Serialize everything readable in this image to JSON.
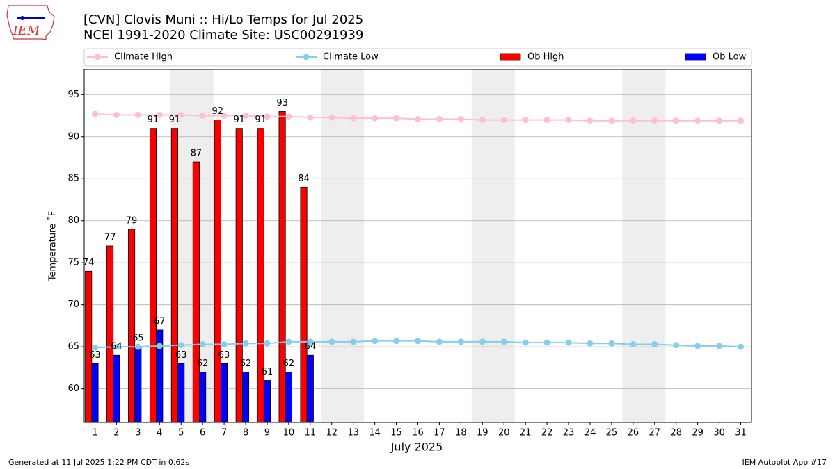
{
  "logo_text": "IEM",
  "chart_data": {
    "type": "bar_line",
    "title": "[CVN] Clovis Muni :: Hi/Lo Temps for Jul 2025",
    "subtitle": "NCEI 1991-2020 Climate Site: USC00291939",
    "x_label": "July 2025",
    "y_label": "Temperature ˚F",
    "x": [
      1,
      2,
      3,
      4,
      5,
      6,
      7,
      8,
      9,
      10,
      11,
      12,
      13,
      14,
      15,
      16,
      17,
      18,
      19,
      20,
      21,
      22,
      23,
      24,
      25,
      26,
      27,
      28,
      29,
      30,
      31
    ],
    "xlim": [
      0.5,
      31.5
    ],
    "xticks": [
      1,
      2,
      3,
      4,
      5,
      6,
      7,
      8,
      9,
      10,
      11,
      12,
      13,
      14,
      15,
      16,
      17,
      18,
      19,
      20,
      21,
      22,
      23,
      24,
      25,
      26,
      27,
      28,
      29,
      30,
      31
    ],
    "ylim": [
      56,
      98
    ],
    "yticks": [
      60,
      65,
      70,
      75,
      80,
      85,
      90,
      95
    ],
    "grid": true,
    "shaded_ranges": [
      [
        4.5,
        6.5
      ],
      [
        11.5,
        13.5
      ],
      [
        18.5,
        20.5
      ],
      [
        25.5,
        27.5
      ]
    ],
    "shade_color": "#eeeeee",
    "legend": "upper center outside",
    "series": [
      {
        "name": "Climate High",
        "kind": "line",
        "color": "#ffc0cb",
        "values": [
          92.7,
          92.6,
          92.6,
          92.6,
          92.6,
          92.5,
          92.5,
          92.5,
          92.4,
          92.4,
          92.3,
          92.3,
          92.2,
          92.2,
          92.2,
          92.1,
          92.1,
          92.1,
          92.0,
          92.0,
          92.0,
          92.0,
          92.0,
          91.9,
          91.9,
          91.9,
          91.9,
          91.9,
          91.9,
          91.9,
          91.9
        ]
      },
      {
        "name": "Climate Low",
        "kind": "line",
        "color": "#87ceeb",
        "values": [
          64.9,
          65.0,
          65.0,
          65.1,
          65.2,
          65.3,
          65.3,
          65.4,
          65.4,
          65.6,
          65.6,
          65.6,
          65.6,
          65.7,
          65.7,
          65.7,
          65.6,
          65.6,
          65.6,
          65.6,
          65.5,
          65.5,
          65.5,
          65.4,
          65.4,
          65.3,
          65.3,
          65.2,
          65.1,
          65.1,
          65.0
        ]
      },
      {
        "name": "Ob High",
        "kind": "bar",
        "color": "#ff0000",
        "values": [
          74,
          77,
          79,
          91,
          91,
          87,
          92,
          91,
          91,
          93,
          84,
          null,
          null,
          null,
          null,
          null,
          null,
          null,
          null,
          null,
          null,
          null,
          null,
          null,
          null,
          null,
          null,
          null,
          null,
          null,
          null
        ]
      },
      {
        "name": "Ob Low",
        "kind": "bar",
        "color": "#0000ff",
        "values": [
          63,
          64,
          65,
          67,
          63,
          62,
          63,
          62,
          61,
          62,
          64,
          null,
          null,
          null,
          null,
          null,
          null,
          null,
          null,
          null,
          null,
          null,
          null,
          null,
          null,
          null,
          null,
          null,
          null,
          null,
          null
        ]
      }
    ],
    "footer_left": "Generated at 11 Jul 2025 1:22 PM CDT in 0.62s",
    "footer_right": "IEM Autoplot App #17"
  }
}
